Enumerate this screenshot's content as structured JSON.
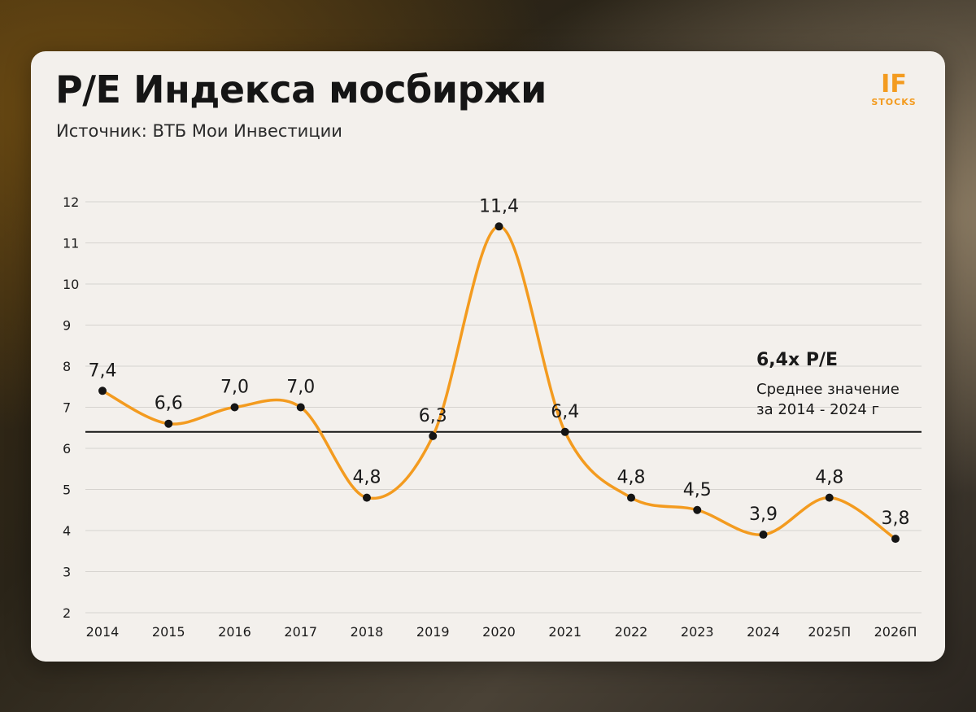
{
  "header": {
    "title": "P/E Индекса мосбиржи",
    "subtitle": "Источник: ВТБ Мои Инвестиции"
  },
  "logo": {
    "big": "IF",
    "small": "STOCKS",
    "color": "#f39b1f"
  },
  "chart_data": {
    "type": "line",
    "categories": [
      "2014",
      "2015",
      "2016",
      "2017",
      "2018",
      "2019",
      "2020",
      "2021",
      "2022",
      "2023",
      "2024",
      "2025П",
      "2026П"
    ],
    "values": [
      7.4,
      6.6,
      7.0,
      7.0,
      4.8,
      6.3,
      11.4,
      6.4,
      4.8,
      4.5,
      3.9,
      4.8,
      3.8
    ],
    "data_labels": [
      "7,4",
      "6,6",
      "7,0",
      "7,0",
      "4,8",
      "6,3",
      "11,4",
      "6,4",
      "4,8",
      "4,5",
      "3,9",
      "4,8",
      "3,8"
    ],
    "ylim": [
      2,
      12
    ],
    "yticks": [
      2,
      3,
      4,
      5,
      6,
      7,
      8,
      9,
      10,
      11,
      12
    ],
    "grid": true,
    "line_color": "#f39b1f",
    "reference_line": {
      "value": 6.4,
      "color": "#151515"
    },
    "annotation": {
      "title": "6,4х P/E",
      "line1": "Среднее значение",
      "line2": "за 2014 - 2024 г"
    }
  }
}
